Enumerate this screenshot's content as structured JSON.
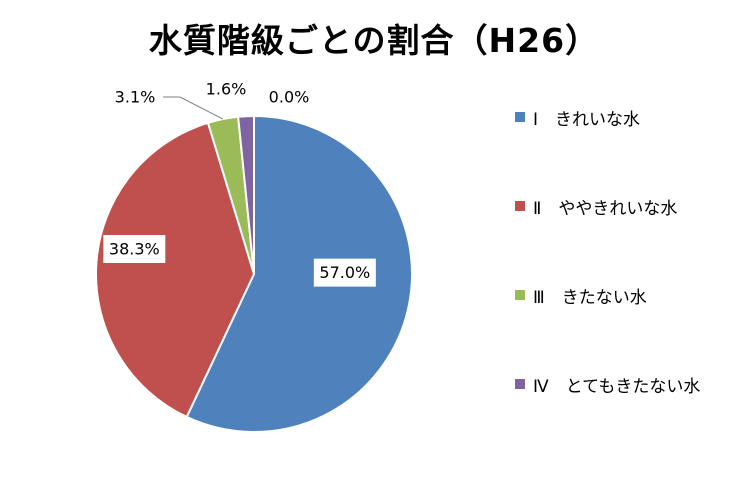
{
  "chart_data": {
    "type": "pie",
    "title": "水質階級ごとの割合（H26）",
    "categories": [
      "Ⅰ　きれいな水",
      "Ⅱ　ややきれいな水",
      "Ⅲ　きたない水",
      "Ⅳ　とてもきたない水"
    ],
    "values": [
      57.0,
      38.3,
      3.1,
      1.6
    ],
    "data_labels": [
      "57.0%",
      "38.3%",
      "3.1%",
      "1.6%"
    ],
    "extra_label": "0.0%",
    "colors": [
      "#4F81BD",
      "#C0504D",
      "#9BBB59",
      "#8064A2"
    ],
    "legend_position": "right"
  }
}
